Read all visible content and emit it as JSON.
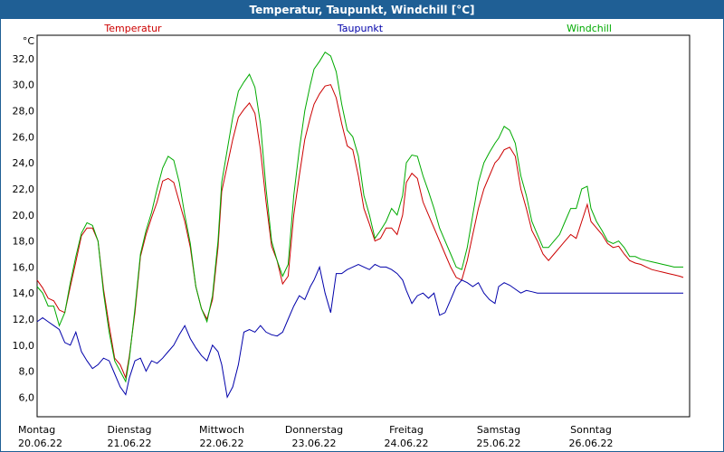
{
  "window": {
    "title": "Temperatur, Taupunkt, Windchill [°C]"
  },
  "chart_data": {
    "type": "line",
    "title": "Temperatur, Taupunkt, Windchill [°C]",
    "ylabel": "°C",
    "ylim": [
      4.5,
      33.8
    ],
    "xlim": [
      0,
      7.0
    ],
    "yticks": [
      6,
      8,
      10,
      12,
      14,
      16,
      18,
      20,
      22,
      24,
      26,
      28,
      30,
      32
    ],
    "ytick_labels": [
      "6,0",
      "8,0",
      "10,0",
      "12,0",
      "14,0",
      "16,0",
      "18,0",
      "20,0",
      "22,0",
      "24,0",
      "26,0",
      "28,0",
      "30,0",
      "32,0"
    ],
    "xticks": [
      {
        "day": "Montag",
        "date": "20.06.22",
        "x": 0
      },
      {
        "day": "Dienstag",
        "date": "21.06.22",
        "x": 1
      },
      {
        "day": "Mittwoch",
        "date": "22.06.22",
        "x": 2
      },
      {
        "day": "Donnerstag",
        "date": "23.06.22",
        "x": 3
      },
      {
        "day": "Freitag",
        "date": "24.06.22",
        "x": 4
      },
      {
        "day": "Samstag",
        "date": "25.06.22",
        "x": 5
      },
      {
        "day": "Sonntag",
        "date": "26.06.22",
        "x": 6
      }
    ],
    "legend_position": "top",
    "grid": true,
    "series": [
      {
        "name": "Temperatur",
        "color": "#cc0000",
        "x": [
          0,
          0.06,
          0.12,
          0.18,
          0.24,
          0.3,
          0.36,
          0.42,
          0.48,
          0.54,
          0.6,
          0.66,
          0.72,
          0.78,
          0.84,
          0.9,
          0.96,
          1.0,
          1.06,
          1.12,
          1.18,
          1.24,
          1.3,
          1.36,
          1.42,
          1.48,
          1.54,
          1.6,
          1.66,
          1.72,
          1.78,
          1.84,
          1.9,
          1.96,
          2.0,
          2.06,
          2.12,
          2.18,
          2.24,
          2.3,
          2.36,
          2.42,
          2.48,
          2.54,
          2.6,
          2.66,
          2.72,
          2.78,
          2.84,
          2.9,
          2.96,
          3.0,
          3.06,
          3.12,
          3.18,
          3.24,
          3.3,
          3.36,
          3.42,
          3.48,
          3.54,
          3.6,
          3.66,
          3.72,
          3.78,
          3.84,
          3.9,
          3.96,
          4.0,
          4.06,
          4.12,
          4.18,
          4.24,
          4.3,
          4.36,
          4.42,
          4.48,
          4.54,
          4.6,
          4.66,
          4.72,
          4.78,
          4.84,
          4.9,
          4.96,
          5.0,
          5.06,
          5.12,
          5.18,
          5.24,
          5.3,
          5.36,
          5.42,
          5.48,
          5.54,
          5.6,
          5.66,
          5.72,
          5.78,
          5.84,
          5.9,
          5.96,
          6.0,
          6.06,
          6.12,
          6.18,
          6.24,
          6.3,
          6.36,
          6.42,
          6.48,
          6.54,
          6.6,
          6.66,
          6.72,
          6.78,
          6.84,
          6.9,
          6.96,
          7.0
        ],
        "values": [
          15.0,
          14.4,
          13.6,
          13.4,
          12.7,
          12.5,
          14.5,
          16.4,
          18.4,
          19.0,
          19.0,
          18.0,
          14.3,
          11.5,
          9.0,
          8.5,
          7.5,
          9.2,
          12.5,
          16.8,
          18.5,
          19.8,
          21.0,
          22.6,
          22.8,
          22.5,
          21.0,
          19.5,
          17.5,
          14.5,
          12.8,
          12.0,
          13.5,
          17.5,
          21.8,
          23.8,
          25.8,
          27.5,
          28.1,
          28.6,
          27.8,
          25.0,
          21.0,
          17.6,
          16.5,
          14.7,
          15.3,
          20.0,
          23.0,
          25.8,
          27.5,
          28.5,
          29.3,
          29.9,
          30.0,
          29.0,
          27.0,
          25.3,
          25.0,
          23.0,
          20.5,
          19.3,
          18.0,
          18.2,
          19.0,
          19.0,
          18.5,
          20.0,
          22.5,
          23.2,
          22.8,
          21.0,
          20.0,
          19.0,
          18.0,
          17.0,
          16.0,
          15.2,
          15.0,
          16.5,
          18.5,
          20.5,
          22.0,
          23.0,
          24.0,
          24.3,
          25.0,
          25.2,
          24.5,
          22.0,
          20.5,
          18.8,
          18.0,
          17.0,
          16.5,
          17.0,
          17.5,
          18.0,
          18.5,
          18.2,
          19.5,
          20.8,
          19.5,
          19.0,
          18.5,
          17.8,
          17.5,
          17.6,
          17.0,
          16.5,
          16.3,
          16.2,
          16.0,
          15.8,
          15.7,
          15.6,
          15.5,
          15.4,
          15.3,
          15.2
        ]
      },
      {
        "name": "Taupunkt",
        "color": "#0000aa",
        "x": [
          0,
          0.06,
          0.12,
          0.18,
          0.24,
          0.3,
          0.36,
          0.42,
          0.48,
          0.54,
          0.6,
          0.66,
          0.72,
          0.78,
          0.84,
          0.9,
          0.96,
          1.0,
          1.06,
          1.12,
          1.18,
          1.24,
          1.3,
          1.36,
          1.42,
          1.48,
          1.54,
          1.6,
          1.66,
          1.72,
          1.78,
          1.84,
          1.9,
          1.96,
          2.0,
          2.06,
          2.12,
          2.18,
          2.24,
          2.3,
          2.36,
          2.42,
          2.48,
          2.54,
          2.6,
          2.66,
          2.72,
          2.78,
          2.84,
          2.9,
          2.96,
          3.0,
          3.06,
          3.12,
          3.18,
          3.24,
          3.3,
          3.36,
          3.42,
          3.48,
          3.54,
          3.6,
          3.66,
          3.72,
          3.78,
          3.84,
          3.9,
          3.96,
          4.0,
          4.06,
          4.12,
          4.18,
          4.24,
          4.3,
          4.36,
          4.42,
          4.48,
          4.54,
          4.6,
          4.66,
          4.72,
          4.78,
          4.84,
          4.9,
          4.96,
          5.0,
          5.06,
          5.12,
          5.18,
          5.24,
          5.3,
          5.36,
          5.42,
          5.48,
          5.54,
          5.6,
          5.66,
          5.72,
          5.78,
          5.84,
          5.9,
          5.96,
          6.0,
          6.06,
          6.12,
          6.18,
          6.24,
          6.3,
          6.36,
          6.42,
          6.48,
          6.54,
          6.6,
          6.66,
          6.72,
          6.78,
          6.84,
          6.9,
          6.96,
          7.0
        ],
        "values": [
          11.8,
          12.1,
          11.8,
          11.5,
          11.2,
          10.2,
          10.0,
          11.0,
          9.5,
          8.8,
          8.2,
          8.5,
          9.0,
          8.8,
          7.8,
          6.8,
          6.2,
          7.5,
          8.8,
          9.0,
          8.0,
          8.8,
          8.6,
          9.0,
          9.5,
          10.0,
          10.8,
          11.5,
          10.5,
          9.8,
          9.2,
          8.8,
          10.0,
          9.5,
          8.5,
          6.0,
          6.8,
          8.5,
          11.0,
          11.2,
          11.0,
          11.5,
          11.0,
          10.8,
          10.7,
          11.0,
          12.0,
          13.0,
          13.8,
          13.5,
          14.5,
          15.0,
          16.0,
          14.0,
          12.5,
          15.5,
          15.5,
          15.8,
          16.0,
          16.2,
          16.0,
          15.8,
          16.2,
          16.0,
          16.0,
          15.8,
          15.5,
          15.0,
          14.2,
          13.2,
          13.8,
          14.0,
          13.6,
          14.0,
          12.3,
          12.5,
          13.5,
          14.5,
          15.0,
          14.8,
          14.5,
          14.8,
          14.0,
          13.5,
          13.2,
          14.5,
          14.8,
          14.6,
          14.3,
          14.0,
          14.2,
          14.1,
          14.0,
          14.0,
          14.0,
          14.0,
          14.0,
          14.0,
          14.0,
          14.0,
          14.0,
          14.0,
          14.0,
          14.0,
          14.0,
          14.0,
          14.0,
          14.0,
          14.0,
          14.0,
          14.0,
          14.0,
          14.0,
          14.0,
          14.0,
          14.0,
          14.0,
          14.0,
          14.0,
          14.0
        ]
      },
      {
        "name": "Windchill",
        "color": "#00aa00",
        "x": [
          0,
          0.06,
          0.12,
          0.18,
          0.24,
          0.3,
          0.36,
          0.42,
          0.48,
          0.54,
          0.6,
          0.66,
          0.72,
          0.78,
          0.84,
          0.9,
          0.96,
          1.0,
          1.06,
          1.12,
          1.18,
          1.24,
          1.3,
          1.36,
          1.42,
          1.48,
          1.54,
          1.6,
          1.66,
          1.72,
          1.78,
          1.84,
          1.9,
          1.96,
          2.0,
          2.06,
          2.12,
          2.18,
          2.24,
          2.3,
          2.36,
          2.42,
          2.48,
          2.54,
          2.6,
          2.66,
          2.72,
          2.78,
          2.84,
          2.9,
          2.96,
          3.0,
          3.06,
          3.12,
          3.18,
          3.24,
          3.3,
          3.36,
          3.42,
          3.48,
          3.54,
          3.6,
          3.66,
          3.72,
          3.78,
          3.84,
          3.9,
          3.96,
          4.0,
          4.06,
          4.12,
          4.18,
          4.24,
          4.3,
          4.36,
          4.42,
          4.48,
          4.54,
          4.6,
          4.66,
          4.72,
          4.78,
          4.84,
          4.9,
          4.96,
          5.0,
          5.06,
          5.12,
          5.18,
          5.24,
          5.3,
          5.36,
          5.42,
          5.48,
          5.54,
          5.6,
          5.66,
          5.72,
          5.78,
          5.84,
          5.9,
          5.96,
          6.0,
          6.06,
          6.12,
          6.18,
          6.24,
          6.3,
          6.36,
          6.42,
          6.48,
          6.54,
          6.6,
          6.66,
          6.72,
          6.78,
          6.84,
          6.9,
          6.96,
          7.0
        ],
        "values": [
          14.5,
          14.0,
          13.0,
          13.0,
          11.5,
          12.5,
          14.8,
          16.8,
          18.6,
          19.4,
          19.2,
          18.0,
          14.0,
          11.0,
          8.8,
          8.0,
          7.2,
          9.0,
          12.8,
          17.0,
          18.8,
          20.2,
          22.0,
          23.6,
          24.5,
          24.2,
          22.5,
          20.0,
          17.8,
          14.5,
          12.8,
          11.8,
          13.8,
          18.0,
          22.5,
          25.0,
          27.5,
          29.5,
          30.2,
          30.8,
          29.8,
          27.0,
          22.0,
          18.0,
          16.5,
          15.3,
          16.2,
          21.5,
          25.0,
          28.0,
          30.0,
          31.2,
          31.8,
          32.5,
          32.2,
          31.0,
          28.5,
          26.5,
          26.0,
          24.5,
          21.5,
          20.0,
          18.2,
          18.8,
          19.5,
          20.5,
          20.0,
          21.5,
          24.0,
          24.6,
          24.5,
          23.0,
          21.8,
          20.5,
          19.0,
          18.0,
          17.0,
          16.0,
          15.8,
          17.5,
          20.0,
          22.5,
          24.0,
          24.8,
          25.5,
          25.9,
          26.8,
          26.5,
          25.5,
          23.0,
          21.5,
          19.5,
          18.5,
          17.5,
          17.5,
          18.0,
          18.5,
          19.5,
          20.5,
          20.5,
          22.0,
          22.2,
          20.5,
          19.5,
          18.8,
          18.0,
          17.8,
          18.0,
          17.5,
          16.8,
          16.8,
          16.6,
          16.5,
          16.4,
          16.3,
          16.2,
          16.1,
          16.0,
          16.0,
          16.0
        ]
      }
    ]
  }
}
